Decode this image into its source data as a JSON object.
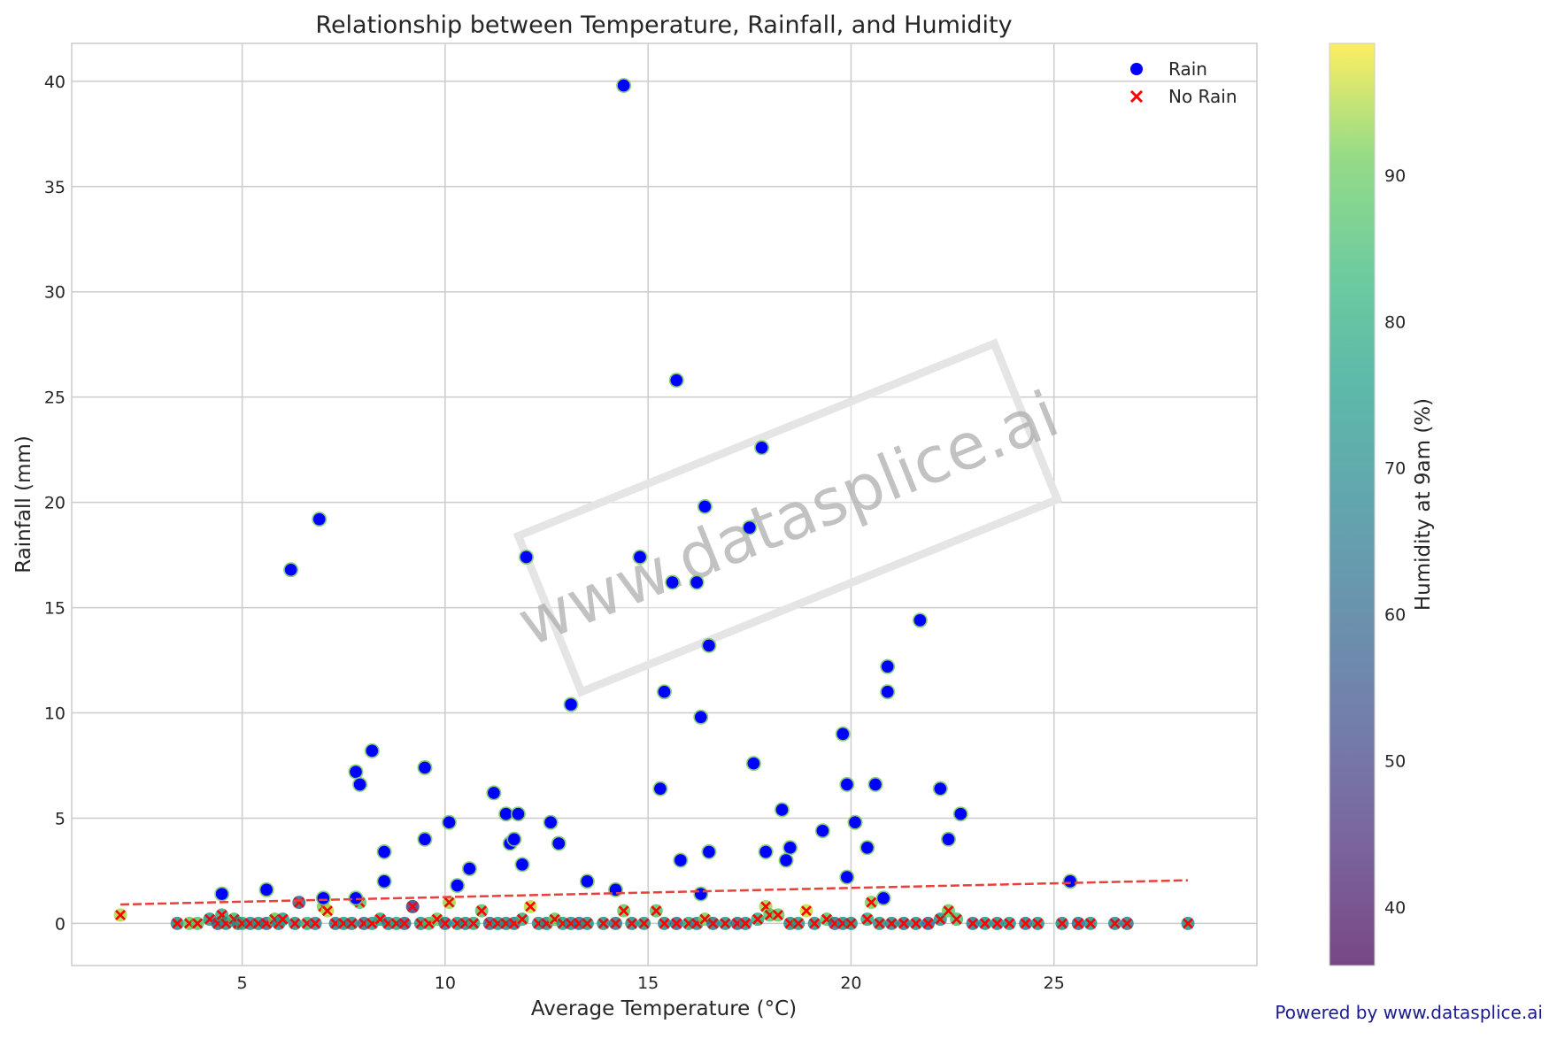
{
  "chart_data": {
    "type": "scatter",
    "title": "Relationship between Temperature, Rainfall, and Humidity",
    "xlabel": "Average Temperature (°C)",
    "ylabel": "Rainfall (mm)",
    "xlim": [
      0.8,
      30
    ],
    "ylim": [
      -2,
      41.8
    ],
    "xticks": [
      5,
      10,
      15,
      20,
      25
    ],
    "yticks": [
      0,
      5,
      10,
      15,
      20,
      25,
      30,
      35,
      40
    ],
    "grid": true,
    "legend_position": "top-right",
    "legend": [
      {
        "label": "Rain",
        "marker": "circle",
        "color": "#0000ff"
      },
      {
        "label": "No Rain",
        "marker": "x",
        "color": "#ff0000"
      }
    ],
    "colorbar": {
      "label": "Humidity at 9am (%)",
      "range": [
        36,
        99
      ],
      "ticks": [
        40,
        50,
        60,
        70,
        80,
        90
      ],
      "colormap": "viridis"
    },
    "trendline": {
      "x": [
        2,
        28.3
      ],
      "y": [
        0.9,
        2.05
      ],
      "color": "#e8403a",
      "style": "dashed"
    },
    "series": [
      {
        "name": "Rain",
        "marker": "circle",
        "color": "#0000ff",
        "x": [
          14.4,
          15.7,
          17.8,
          6.9,
          16.4,
          17.5,
          12.0,
          14.8,
          6.2,
          15.6,
          16.2,
          21.7,
          16.5,
          20.9,
          15.4,
          20.9,
          13.1,
          16.3,
          19.8,
          7.8,
          8.2,
          9.5,
          7.9,
          17.6,
          19.9,
          20.6,
          22.2,
          15.3,
          11.2,
          18.3,
          22.7,
          11.5,
          11.8,
          10.1,
          12.6,
          20.1,
          19.3,
          9.5,
          11.6,
          12.8,
          18.5,
          20.4,
          8.5,
          11.7,
          16.5,
          17.9,
          15.8,
          18.4,
          11.9,
          10.6,
          13.5,
          25.4,
          8.5,
          10.3,
          14.2,
          5.6,
          4.5,
          16.3,
          20.8,
          7.0,
          7.8,
          19.9,
          22.4
        ],
        "y": [
          39.8,
          25.8,
          22.6,
          19.2,
          19.8,
          18.8,
          17.4,
          17.4,
          16.8,
          16.2,
          16.2,
          14.4,
          13.2,
          12.2,
          11.0,
          11.0,
          10.4,
          9.8,
          9.0,
          7.2,
          8.2,
          7.4,
          6.6,
          7.6,
          6.6,
          6.6,
          6.4,
          6.4,
          6.2,
          5.4,
          5.2,
          5.2,
          5.2,
          4.8,
          4.8,
          4.8,
          4.4,
          4.0,
          3.8,
          3.8,
          3.6,
          3.6,
          3.4,
          4.0,
          3.4,
          3.4,
          3.0,
          3.0,
          2.8,
          2.6,
          2.0,
          2.0,
          2.0,
          1.8,
          1.6,
          1.6,
          1.4,
          1.4,
          1.2,
          1.2,
          1.2,
          2.2,
          4.0
        ]
      },
      {
        "name": "No Rain",
        "marker": "x",
        "color": "#ff0000",
        "x": [
          2.0,
          3.4,
          3.7,
          3.9,
          4.2,
          4.4,
          4.5,
          4.6,
          4.8,
          4.9,
          5.0,
          5.2,
          5.4,
          5.6,
          5.8,
          5.9,
          6.0,
          6.3,
          6.4,
          6.6,
          6.8,
          7.0,
          7.1,
          7.3,
          7.5,
          7.7,
          7.9,
          8.0,
          8.2,
          8.4,
          8.6,
          8.8,
          9.0,
          9.2,
          9.4,
          9.6,
          9.8,
          10.0,
          10.1,
          10.3,
          10.5,
          10.7,
          10.9,
          11.1,
          11.3,
          11.5,
          11.7,
          11.9,
          12.1,
          12.3,
          12.5,
          12.7,
          12.9,
          13.1,
          13.3,
          13.5,
          13.9,
          14.2,
          14.4,
          14.6,
          14.9,
          15.2,
          15.4,
          15.7,
          16.0,
          16.2,
          16.4,
          16.6,
          16.9,
          17.2,
          17.4,
          17.7,
          17.9,
          18.0,
          18.2,
          18.5,
          18.7,
          18.9,
          19.1,
          19.4,
          19.6,
          19.8,
          20.0,
          20.4,
          20.5,
          20.7,
          21.0,
          21.3,
          21.6,
          21.9,
          22.2,
          22.4,
          22.6,
          23.0,
          23.3,
          23.6,
          23.9,
          24.3,
          24.6,
          25.2,
          25.6,
          25.9,
          26.5,
          26.8,
          28.3
        ],
        "y": [
          0.4,
          0.0,
          0.0,
          0.0,
          0.2,
          0.0,
          0.4,
          0.0,
          0.2,
          0.0,
          0.0,
          0.0,
          0.0,
          0.0,
          0.2,
          0.0,
          0.2,
          0.0,
          1.0,
          0.0,
          0.0,
          0.8,
          0.6,
          0.0,
          0.0,
          0.0,
          1.0,
          0.0,
          0.0,
          0.2,
          0.0,
          0.0,
          0.0,
          0.8,
          0.0,
          0.0,
          0.2,
          0.0,
          1.0,
          0.0,
          0.0,
          0.0,
          0.6,
          0.0,
          0.0,
          0.0,
          0.0,
          0.2,
          0.8,
          0.0,
          0.0,
          0.2,
          0.0,
          0.0,
          0.0,
          0.0,
          0.0,
          0.0,
          0.6,
          0.0,
          0.0,
          0.6,
          0.0,
          0.0,
          0.0,
          0.0,
          0.2,
          0.0,
          0.0,
          0.0,
          0.0,
          0.2,
          0.8,
          0.4,
          0.4,
          0.0,
          0.0,
          0.6,
          0.0,
          0.2,
          0.0,
          0.0,
          0.0,
          0.2,
          1.0,
          0.0,
          0.0,
          0.0,
          0.0,
          0.0,
          0.2,
          0.6,
          0.2,
          0.0,
          0.0,
          0.0,
          0.0,
          0.0,
          0.0,
          0.0,
          0.0,
          0.0,
          0.0,
          0.0,
          0.0
        ],
        "humidity": [
          95,
          70,
          90,
          88,
          75,
          60,
          80,
          72,
          85,
          66,
          78,
          70,
          74,
          62,
          90,
          68,
          76,
          72,
          58,
          82,
          70,
          92,
          95,
          66,
          74,
          70,
          88,
          64,
          76,
          80,
          70,
          78,
          60,
          50,
          72,
          85,
          90,
          66,
          94,
          74,
          70,
          80,
          88,
          62,
          74,
          70,
          66,
          82,
          96,
          72,
          70,
          90,
          76,
          70,
          62,
          74,
          72,
          66,
          90,
          70,
          74,
          88,
          70,
          62,
          80,
          70,
          92,
          66,
          74,
          62,
          70,
          80,
          94,
          88,
          90,
          70,
          76,
          96,
          72,
          88,
          64,
          70,
          72,
          80,
          92,
          74,
          70,
          66,
          72,
          60,
          74,
          90,
          86,
          66,
          72,
          70,
          74,
          66,
          72,
          70,
          62,
          74,
          70,
          66,
          72
        ]
      }
    ]
  },
  "watermark": "www.datasplice.ai",
  "credit": "Powered by www.datasplice.ai"
}
